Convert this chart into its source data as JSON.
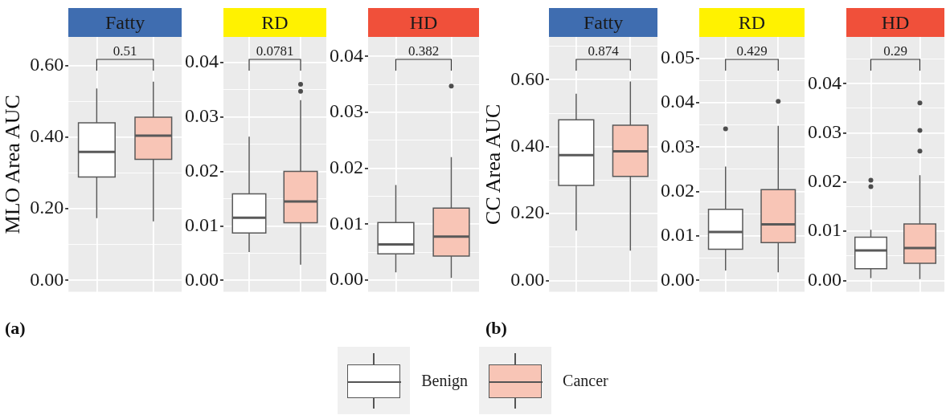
{
  "chart_data": [
    {
      "type": "box",
      "title": "Fatty",
      "ylabel": "MLO Area AUC",
      "categories": [
        null,
        null
      ],
      "tick_labels": "y",
      "grid": true,
      "legend": "bottom",
      "ylim": [
        -0.032,
        0.68
      ],
      "yticks": [
        {
          "value": 0,
          "label": "0.00"
        },
        {
          "value": 0.1,
          "label": null
        },
        {
          "value": 0.2,
          "label": "0.20"
        },
        {
          "value": 0.3,
          "label": null
        },
        {
          "value": 0.4,
          "label": "0.40"
        },
        {
          "value": 0.5,
          "label": null
        },
        {
          "value": 0.6,
          "label": "0.60"
        }
      ],
      "annotations": [
        "0.51",
        "(a)"
      ],
      "series": [
        {
          "name": "Benign",
          "color": "#ffffff",
          "boxes": [
            {
              "low": 0.174,
              "q1": 0.289,
              "median": 0.359,
              "q3": 0.44,
              "high": 0.536
            },
            null
          ]
        },
        {
          "name": "Cancer",
          "color": "#f8c5b6",
          "boxes": [
            null,
            {
              "low": 0.165,
              "q1": 0.338,
              "median": 0.404,
              "q3": 0.456,
              "high": 0.555
            }
          ]
        }
      ]
    },
    {
      "type": "box",
      "title": "RD",
      "categories": [
        null,
        null
      ],
      "tick_labels": "y",
      "grid": true,
      "ylim": [
        -0.0021,
        0.0447
      ],
      "yticks": [
        {
          "value": 0,
          "label": "0.00"
        },
        {
          "value": 0.005,
          "label": null
        },
        {
          "value": 0.01,
          "label": "0.01"
        },
        {
          "value": 0.015,
          "label": null
        },
        {
          "value": 0.02,
          "label": "0.02"
        },
        {
          "value": 0.025,
          "label": null
        },
        {
          "value": 0.03,
          "label": "0.03"
        },
        {
          "value": 0.035,
          "label": null
        },
        {
          "value": 0.04,
          "label": "0.04"
        }
      ],
      "annotations": [
        "0.0781"
      ],
      "series": [
        {
          "color": "#ffffff",
          "boxes": [
            {
              "low": 0.0052,
              "q1": 0.0087,
              "median": 0.0115,
              "q3": 0.0159,
              "high": 0.0264
            },
            null
          ]
        },
        {
          "color": "#f8c5b6",
          "boxes": [
            null,
            {
              "low": 0.0029,
              "q1": 0.0106,
              "median": 0.0145,
              "q3": 0.02,
              "high": 0.0331,
              "outliers": [
                0.036,
                0.0347
              ]
            }
          ]
        }
      ]
    },
    {
      "type": "box",
      "title": "HD",
      "categories": [
        null,
        null
      ],
      "tick_labels": "y",
      "grid": true,
      "ylim": [
        -0.0021,
        0.0435
      ],
      "yticks": [
        {
          "value": 0,
          "label": "0.00"
        },
        {
          "value": 0.005,
          "label": null
        },
        {
          "value": 0.01,
          "label": "0.01"
        },
        {
          "value": 0.015,
          "label": null
        },
        {
          "value": 0.02,
          "label": "0.02"
        },
        {
          "value": 0.025,
          "label": null
        },
        {
          "value": 0.03,
          "label": "0.03"
        },
        {
          "value": 0.035,
          "label": null
        },
        {
          "value": 0.04,
          "label": "0.04"
        }
      ],
      "annotations": [
        "0.382"
      ],
      "series": [
        {
          "color": "#ffffff",
          "boxes": [
            {
              "low": 0.0014,
              "q1": 0.0047,
              "median": 0.0064,
              "q3": 0.0103,
              "high": 0.017
            },
            null
          ]
        },
        {
          "color": "#f8c5b6",
          "boxes": [
            null,
            {
              "low": 0.0004,
              "q1": 0.0043,
              "median": 0.0078,
              "q3": 0.0129,
              "high": 0.022,
              "outliers": [
                0.0347
              ]
            }
          ]
        }
      ]
    },
    {
      "type": "box",
      "title": "Fatty",
      "ylabel": "CC Area AUC",
      "categories": [
        null,
        null
      ],
      "tick_labels": "y",
      "grid": true,
      "ylim": [
        -0.034,
        0.728
      ],
      "yticks": [
        {
          "value": 0,
          "label": "0.00"
        },
        {
          "value": 0.1,
          "label": null
        },
        {
          "value": 0.2,
          "label": "0.20"
        },
        {
          "value": 0.3,
          "label": null
        },
        {
          "value": 0.4,
          "label": "0.40"
        },
        {
          "value": 0.5,
          "label": null
        },
        {
          "value": 0.6,
          "label": "0.60"
        },
        {
          "value": 0.7,
          "label": null
        }
      ],
      "annotations": [
        "0.874",
        "(b)"
      ],
      "series": [
        {
          "color": "#ffffff",
          "boxes": [
            {
              "low": 0.149,
              "q1": 0.284,
              "median": 0.375,
              "q3": 0.48,
              "high": 0.558
            },
            null
          ]
        },
        {
          "color": "#f8c5b6",
          "boxes": [
            null,
            {
              "low": 0.089,
              "q1": 0.311,
              "median": 0.386,
              "q3": 0.464,
              "high": 0.595
            }
          ]
        }
      ]
    },
    {
      "type": "box",
      "title": "RD",
      "categories": [
        null,
        null
      ],
      "tick_labels": "y",
      "grid": true,
      "ylim": [
        -0.0026,
        0.0548
      ],
      "yticks": [
        {
          "value": 0,
          "label": "0.00"
        },
        {
          "value": 0.005,
          "label": null
        },
        {
          "value": 0.01,
          "label": "0.01"
        },
        {
          "value": 0.015,
          "label": null
        },
        {
          "value": 0.02,
          "label": "0.02"
        },
        {
          "value": 0.025,
          "label": null
        },
        {
          "value": 0.03,
          "label": "0.03"
        },
        {
          "value": 0.035,
          "label": null
        },
        {
          "value": 0.04,
          "label": "0.04"
        },
        {
          "value": 0.045,
          "label": null
        },
        {
          "value": 0.05,
          "label": "0.05"
        }
      ],
      "annotations": [
        "0.429"
      ],
      "series": [
        {
          "color": "#ffffff",
          "boxes": [
            {
              "low": 0.0022,
              "q1": 0.007,
              "median": 0.0109,
              "q3": 0.016,
              "high": 0.0256,
              "outliers": [
                0.0341
              ]
            },
            null
          ]
        },
        {
          "color": "#f8c5b6",
          "boxes": [
            null,
            {
              "low": 0.0018,
              "q1": 0.0085,
              "median": 0.0126,
              "q3": 0.0204,
              "high": 0.0348,
              "outliers": [
                0.0403
              ]
            }
          ]
        }
      ]
    },
    {
      "type": "box",
      "title": "HD",
      "categories": [
        null,
        null
      ],
      "tick_labels": "y",
      "grid": true,
      "ylim": [
        -0.0023,
        0.0495
      ],
      "yticks": [
        {
          "value": 0,
          "label": "0.00"
        },
        {
          "value": 0.005,
          "label": null
        },
        {
          "value": 0.01,
          "label": "0.01"
        },
        {
          "value": 0.015,
          "label": null
        },
        {
          "value": 0.02,
          "label": "0.02"
        },
        {
          "value": 0.025,
          "label": null
        },
        {
          "value": 0.03,
          "label": "0.03"
        },
        {
          "value": 0.035,
          "label": null
        },
        {
          "value": 0.04,
          "label": "0.04"
        },
        {
          "value": 0.045,
          "label": null
        }
      ],
      "annotations": [
        "0.29"
      ],
      "series": [
        {
          "color": "#ffffff",
          "boxes": [
            {
              "low": 0.0005,
              "q1": 0.0024,
              "median": 0.0061,
              "q3": 0.0088,
              "high": 0.0103,
              "outliers": [
                0.0204,
                0.0191
              ]
            },
            null
          ]
        },
        {
          "color": "#f8c5b6",
          "boxes": [
            null,
            {
              "low": 0.0003,
              "q1": 0.0035,
              "median": 0.0066,
              "q3": 0.0115,
              "high": 0.0214,
              "outliers": [
                0.0361,
                0.0305,
                0.0263
              ]
            }
          ]
        }
      ]
    }
  ]
}
